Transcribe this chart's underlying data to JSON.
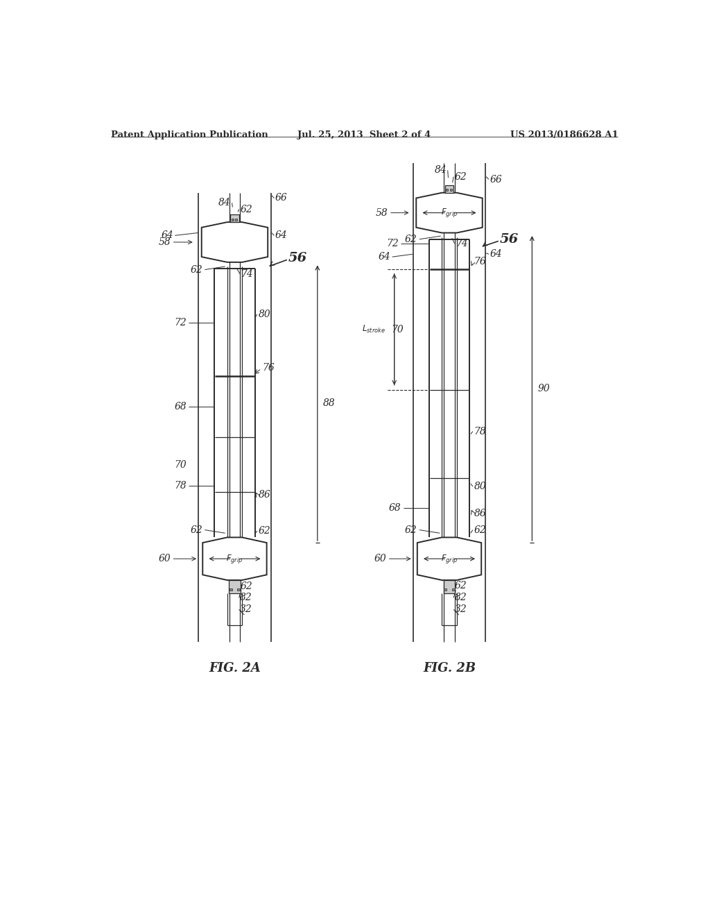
{
  "bg_color": "#ffffff",
  "line_color": "#2a2a2a",
  "header_left": "Patent Application Publication",
  "header_center": "Jul. 25, 2013  Sheet 2 of 4",
  "header_right": "US 2013/0186628 A1",
  "fig2a_label": "FIG. 2A",
  "fig2b_label": "FIG. 2B"
}
